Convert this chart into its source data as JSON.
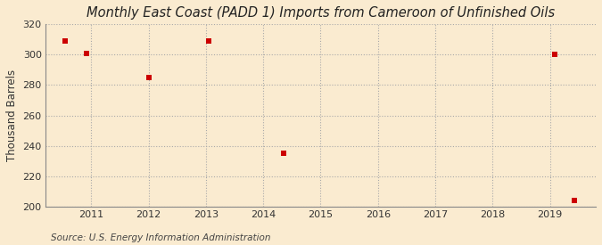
{
  "title": "Monthly East Coast (PADD 1) Imports from Cameroon of Unfinished Oils",
  "ylabel": "Thousand Barrels",
  "source": "Source: U.S. Energy Information Administration",
  "background_color": "#faebd0",
  "plot_bg_color": "#faebd0",
  "grid_color": "#aaaaaa",
  "marker_color": "#cc0000",
  "xlim": [
    2010.2,
    2019.8
  ],
  "ylim": [
    200,
    320
  ],
  "yticks": [
    200,
    220,
    240,
    260,
    280,
    300,
    320
  ],
  "xticks": [
    2011,
    2012,
    2013,
    2014,
    2015,
    2016,
    2017,
    2018,
    2019
  ],
  "data_x": [
    2010.55,
    2010.92,
    2012.0,
    2013.05,
    2014.35,
    2019.08,
    2019.42
  ],
  "data_y": [
    309,
    301,
    285,
    309,
    235,
    300,
    204
  ],
  "title_fontsize": 10.5,
  "axis_fontsize": 8.5,
  "tick_fontsize": 8,
  "source_fontsize": 7.5
}
